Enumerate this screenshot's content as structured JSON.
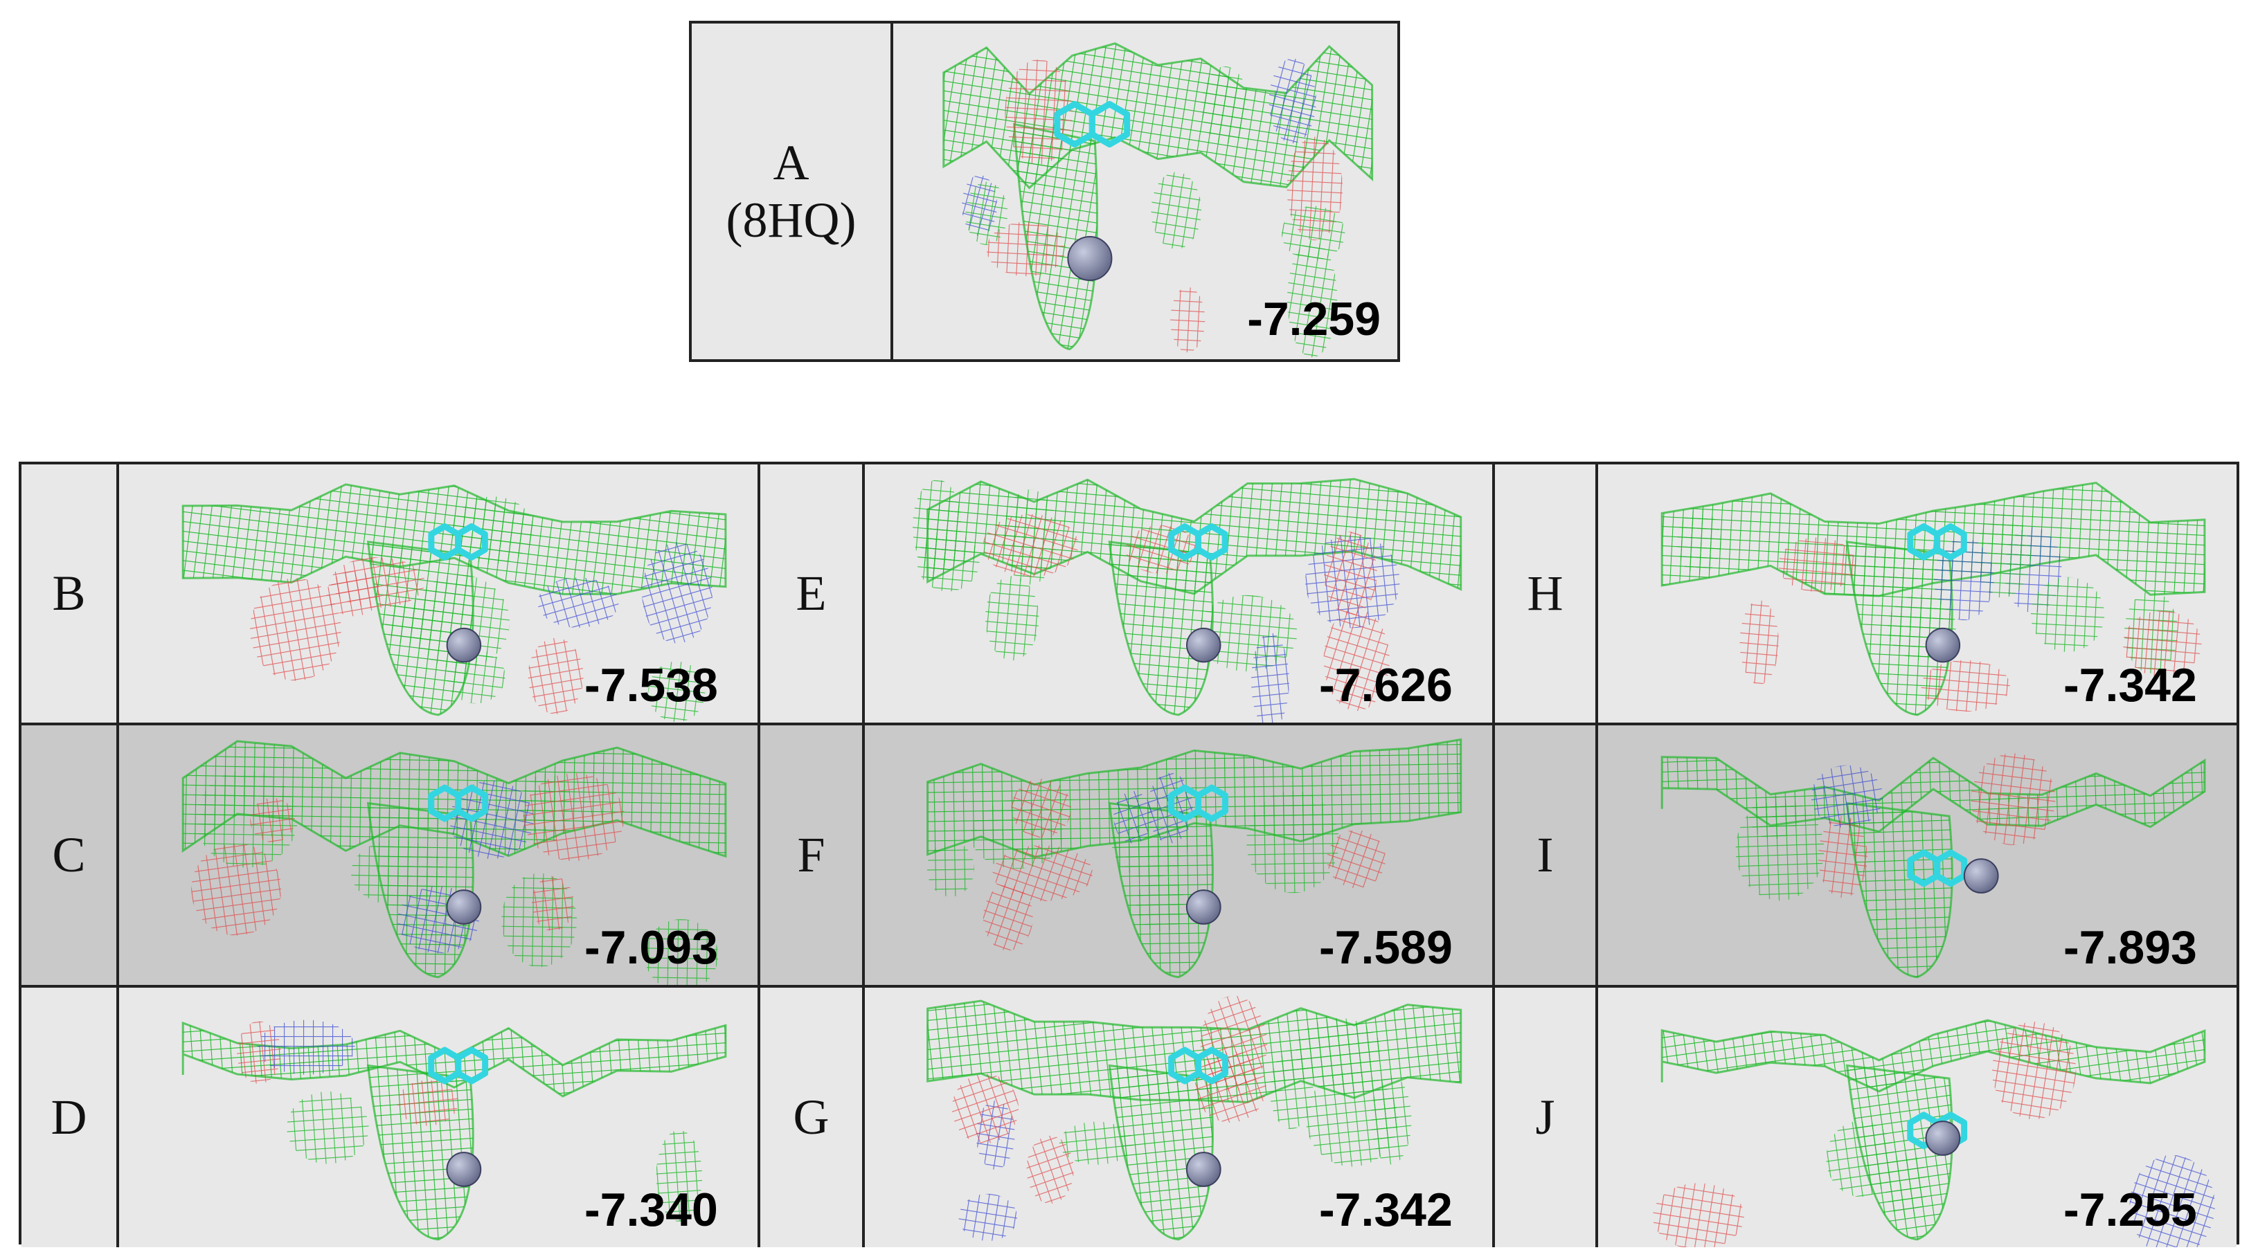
{
  "panel_a": {
    "label_line1": "A",
    "label_line2": "(8HQ)",
    "score": "-7.259"
  },
  "grid": {
    "rows": [
      {
        "shade": "light",
        "cells": [
          {
            "label": "B",
            "score": "-7.538"
          },
          {
            "label": "E",
            "score": "-7.626"
          },
          {
            "label": "H",
            "score": "-7.342"
          }
        ]
      },
      {
        "shade": "dark",
        "cells": [
          {
            "label": "C",
            "score": "-7.093"
          },
          {
            "label": "F",
            "score": "-7.589"
          },
          {
            "label": "I",
            "score": "-7.893"
          }
        ]
      },
      {
        "shade": "light",
        "cells": [
          {
            "label": "D",
            "score": "-7.340"
          },
          {
            "label": "G",
            "score": "-7.342"
          },
          {
            "label": "J",
            "score": "-7.255"
          }
        ]
      }
    ]
  },
  "colors": {
    "mesh_green": "#1fb82a",
    "mesh_red": "#e04848",
    "mesh_blue": "#3040d0",
    "ligand": "#33d6e0",
    "metal_ion": "#6a6f8e",
    "light_bg": "#e8e8e8",
    "dark_bg": "#c9c9c9"
  }
}
